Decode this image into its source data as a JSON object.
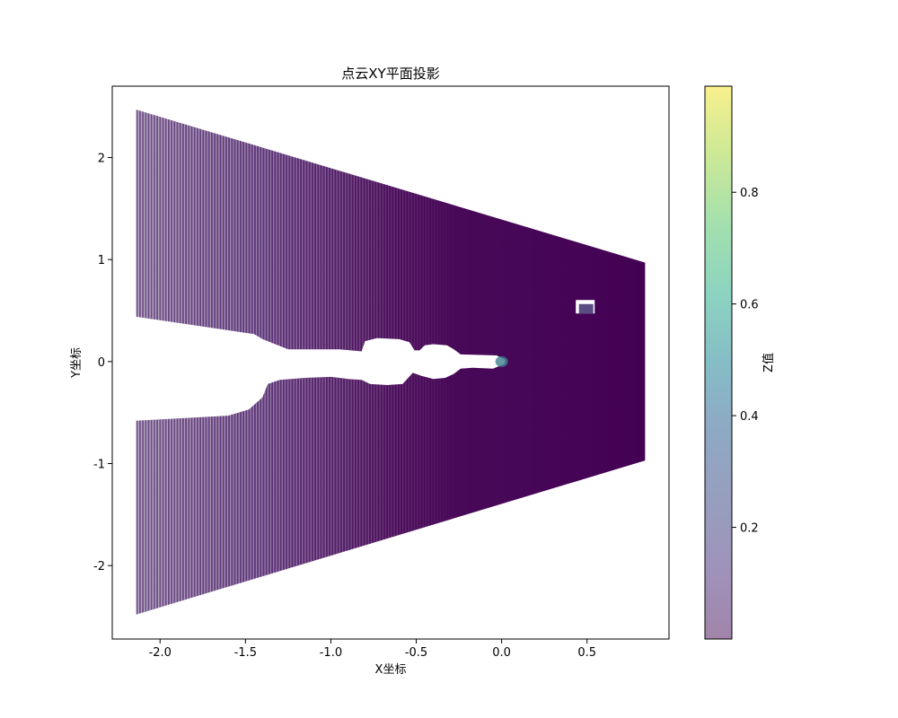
{
  "chart_data": {
    "type": "scatter",
    "title": "点云XY平面投影",
    "xlabel": "X坐标",
    "ylabel": "Y坐标",
    "xlim": [
      -2.28,
      0.98
    ],
    "ylim": [
      -2.72,
      2.7
    ],
    "x_ticks": [
      -2.0,
      -1.5,
      -1.0,
      -0.5,
      0.0,
      0.5
    ],
    "x_tick_labels": [
      "-2.0",
      "-1.5",
      "-1.0",
      "-0.5",
      "0.0",
      "0.5"
    ],
    "y_ticks": [
      2,
      1,
      0,
      -1,
      -2
    ],
    "y_tick_labels": [
      "2",
      "1",
      "0",
      "-1",
      "-2"
    ],
    "grid": false,
    "colormap": "viridis",
    "alpha": 0.5,
    "colorbar": {
      "label": "Z值",
      "range": [
        0.0,
        0.99
      ],
      "ticks": [
        0.2,
        0.4,
        0.6,
        0.8
      ],
      "tick_labels": [
        "0.2",
        "0.4",
        "0.6",
        "0.8"
      ]
    },
    "point_cloud_region": {
      "description_shape": "trapezoid",
      "x_min": -2.14,
      "x_max": 0.84,
      "y_at_x_min": [
        -2.48,
        2.47
      ],
      "y_at_x_max": [
        -0.97,
        0.97
      ],
      "dominant_z": 0.0,
      "hole_left_x": -2.14,
      "hole_left_y_range": [
        -0.58,
        0.44
      ]
    },
    "highlight_points": [
      {
        "x": 0.0,
        "y": 0.0,
        "z": 0.35
      },
      {
        "x": 0.5,
        "y": 0.52,
        "z": 0.12
      }
    ]
  }
}
